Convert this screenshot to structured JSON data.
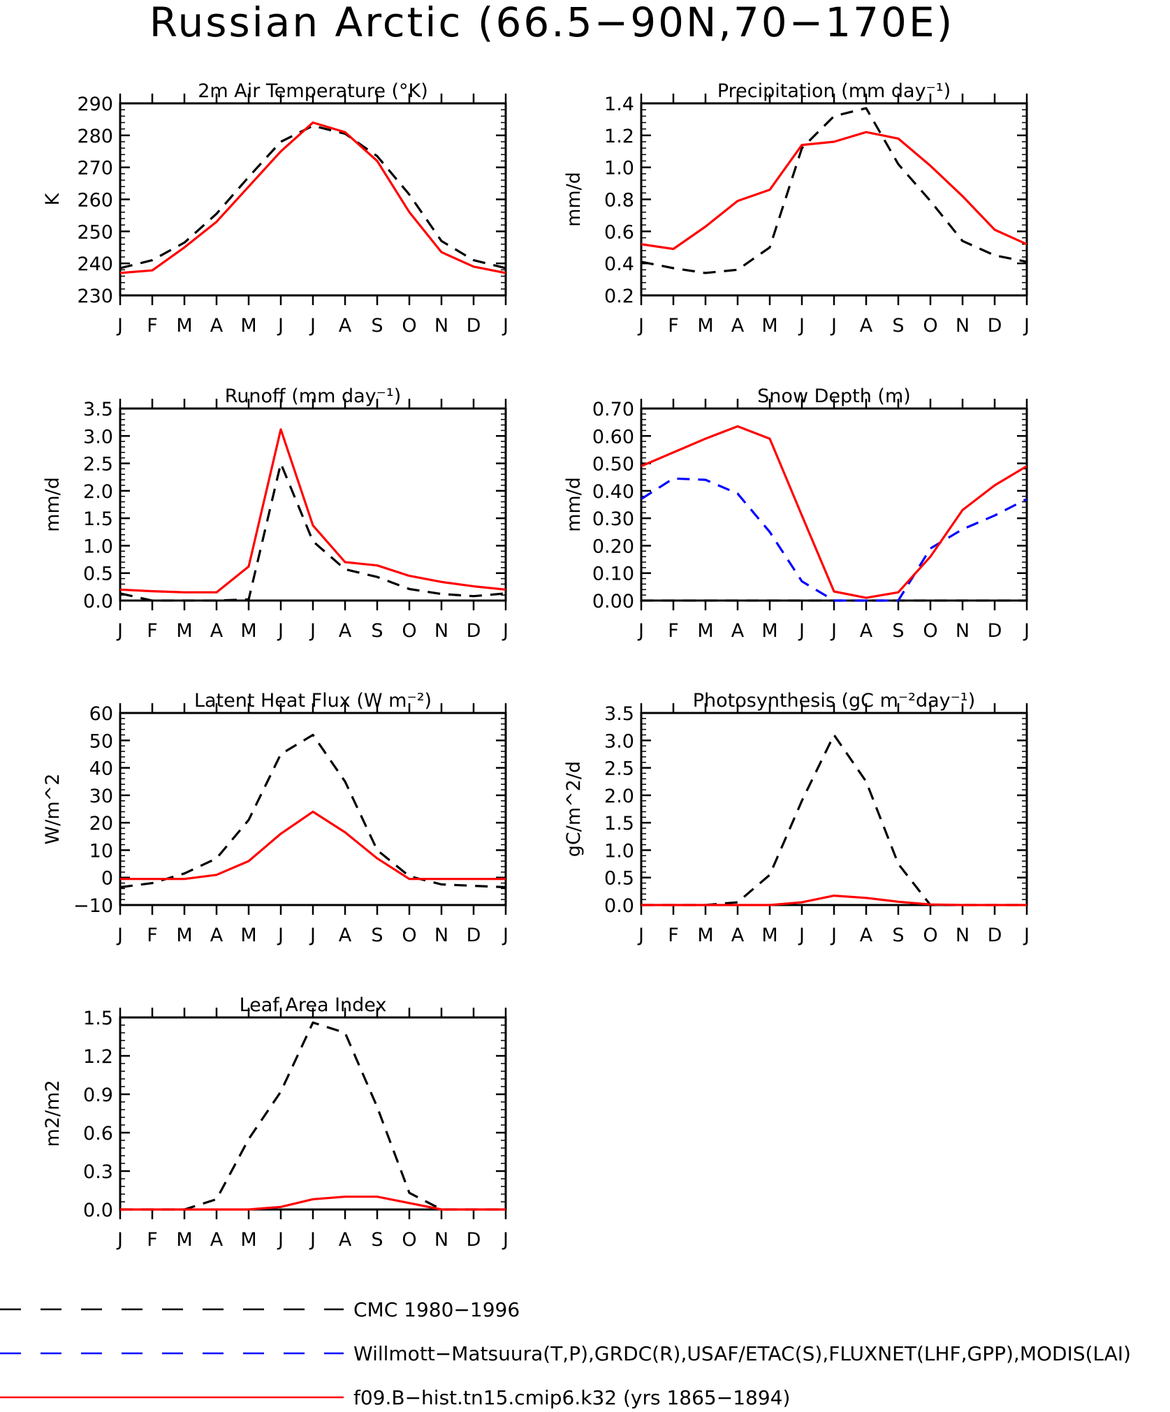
{
  "main_title": "Russian Arctic (66.5−90N,70−170E)",
  "months": [
    "J",
    "F",
    "M",
    "A",
    "M",
    "J",
    "J",
    "A",
    "S",
    "O",
    "N",
    "D",
    "J"
  ],
  "series_styles": {
    "obs_cmc": {
      "color": "#000000",
      "dash": "dashed"
    },
    "obs_multi": {
      "color": "#0000ff",
      "dash": "dashed"
    },
    "model": {
      "color": "#ff0000",
      "dash": "solid"
    }
  },
  "chart_data": [
    {
      "id": "temp",
      "type": "line",
      "title": "2m Air Temperature (°K)",
      "ylabel": "K",
      "ylim": [
        230,
        290
      ],
      "yticks": [
        230,
        240,
        250,
        260,
        270,
        280,
        290
      ],
      "ytick_labels": [
        "230",
        "240",
        "250",
        "260",
        "270",
        "280",
        "290"
      ],
      "x": [
        "J",
        "F",
        "M",
        "A",
        "M",
        "J",
        "J",
        "A",
        "S",
        "O",
        "N",
        "D",
        "J"
      ],
      "series": [
        {
          "style": "obs_cmc",
          "values": [
            238.5,
            241,
            246.5,
            255.5,
            267,
            278,
            283,
            280.5,
            273.5,
            261.5,
            247,
            241,
            238.5
          ]
        },
        {
          "style": "model",
          "values": [
            237,
            237.8,
            245,
            253,
            264,
            275,
            284,
            281,
            272,
            256,
            243.5,
            239,
            237
          ]
        }
      ]
    },
    {
      "id": "precip",
      "type": "line",
      "title": "Precipitation (mm day⁻¹)",
      "ylabel": "mm/d",
      "ylim": [
        0.2,
        1.4
      ],
      "yticks": [
        0.2,
        0.4,
        0.6,
        0.8,
        1.0,
        1.2,
        1.4
      ],
      "ytick_labels": [
        "0.2",
        "0.4",
        "0.6",
        "0.8",
        "1.0",
        "1.2",
        "1.4"
      ],
      "x": [
        "J",
        "F",
        "M",
        "A",
        "M",
        "J",
        "J",
        "A",
        "S",
        "O",
        "N",
        "D",
        "J"
      ],
      "series": [
        {
          "style": "obs_cmc",
          "values": [
            0.41,
            0.37,
            0.34,
            0.36,
            0.5,
            1.12,
            1.32,
            1.37,
            1.02,
            0.79,
            0.54,
            0.45,
            0.41
          ]
        },
        {
          "style": "model",
          "values": [
            0.52,
            0.49,
            0.63,
            0.79,
            0.86,
            1.14,
            1.16,
            1.22,
            1.18,
            1.01,
            0.82,
            0.61,
            0.52
          ]
        }
      ]
    },
    {
      "id": "runoff",
      "type": "line",
      "title": "Runoff (mm day⁻¹)",
      "ylabel": "mm/d",
      "ylim": [
        0,
        3.5
      ],
      "yticks": [
        0,
        0.5,
        1.0,
        1.5,
        2.0,
        2.5,
        3.0,
        3.5
      ],
      "ytick_labels": [
        "0.0",
        "0.5",
        "1.0",
        "1.5",
        "2.0",
        "2.5",
        "3.0",
        "3.5"
      ],
      "x": [
        "J",
        "F",
        "M",
        "A",
        "M",
        "J",
        "J",
        "A",
        "S",
        "O",
        "N",
        "D",
        "J"
      ],
      "series": [
        {
          "style": "obs_cmc",
          "values": [
            0.13,
            0.0,
            0.0,
            0.0,
            0.02,
            2.5,
            1.08,
            0.57,
            0.43,
            0.21,
            0.12,
            0.08,
            0.13
          ]
        },
        {
          "style": "model",
          "values": [
            0.2,
            0.17,
            0.15,
            0.15,
            0.62,
            3.12,
            1.37,
            0.7,
            0.64,
            0.45,
            0.34,
            0.26,
            0.2
          ]
        }
      ]
    },
    {
      "id": "snow",
      "type": "line",
      "title": "Snow Depth (m)",
      "ylabel": "mm/d",
      "ylim": [
        0,
        0.7
      ],
      "yticks": [
        0,
        0.1,
        0.2,
        0.3,
        0.4,
        0.5,
        0.6,
        0.7
      ],
      "ytick_labels": [
        "0.00",
        "0.10",
        "0.20",
        "0.30",
        "0.40",
        "0.50",
        "0.60",
        "0.70"
      ],
      "x": [
        "J",
        "F",
        "M",
        "A",
        "M",
        "J",
        "J",
        "A",
        "S",
        "O",
        "N",
        "D",
        "J"
      ],
      "series": [
        {
          "style": "obs_cmc",
          "values": [
            0,
            0,
            0,
            0,
            0,
            0,
            0,
            0,
            0,
            0,
            0,
            0,
            0
          ]
        },
        {
          "style": "obs_multi",
          "values": [
            0.37,
            0.445,
            0.44,
            0.39,
            0.25,
            0.07,
            0.0,
            0.0,
            0.0,
            0.19,
            0.26,
            0.31,
            0.37
          ]
        },
        {
          "style": "model",
          "values": [
            0.49,
            0.54,
            0.59,
            0.635,
            0.59,
            0.31,
            0.033,
            0.01,
            0.03,
            0.16,
            0.33,
            0.42,
            0.49
          ]
        }
      ]
    },
    {
      "id": "lhf",
      "type": "line",
      "title": "Latent Heat Flux (W m⁻²)",
      "ylabel": "W/m^2",
      "ylim": [
        -10,
        60
      ],
      "yticks": [
        -10,
        0,
        10,
        20,
        30,
        40,
        50,
        60
      ],
      "ytick_labels": [
        "−10",
        "0",
        "10",
        "20",
        "30",
        "40",
        "50",
        "60"
      ],
      "x": [
        "J",
        "F",
        "M",
        "A",
        "M",
        "J",
        "J",
        "A",
        "S",
        "O",
        "N",
        "D",
        "J"
      ],
      "series": [
        {
          "style": "obs_cmc",
          "values": [
            -3.5,
            -2,
            1.5,
            7,
            21,
            45,
            52,
            35,
            10,
            0.5,
            -2.5,
            -3,
            -3.5
          ]
        },
        {
          "style": "model",
          "values": [
            -0.5,
            -0.5,
            -0.5,
            1,
            6,
            16,
            24,
            16.5,
            7,
            -0.5,
            -0.5,
            -0.5,
            -0.5
          ]
        }
      ]
    },
    {
      "id": "gpp",
      "type": "line",
      "title": "Photosynthesis (gC m⁻²day⁻¹)",
      "ylabel": "gC/m^2/d",
      "ylim": [
        0,
        3.5
      ],
      "yticks": [
        0,
        0.5,
        1.0,
        1.5,
        2.0,
        2.5,
        3.0,
        3.5
      ],
      "ytick_labels": [
        "0.0",
        "0.5",
        "1.0",
        "1.5",
        "2.0",
        "2.5",
        "3.0",
        "3.5"
      ],
      "x": [
        "J",
        "F",
        "M",
        "A",
        "M",
        "J",
        "J",
        "A",
        "S",
        "O",
        "N",
        "D",
        "J"
      ],
      "series": [
        {
          "style": "obs_cmc",
          "values": [
            0,
            0,
            0,
            0.05,
            0.55,
            1.9,
            3.1,
            2.25,
            0.75,
            0,
            0,
            0,
            0
          ]
        },
        {
          "style": "model",
          "values": [
            0,
            0,
            0,
            0,
            0,
            0.05,
            0.17,
            0.13,
            0.06,
            0.01,
            0,
            0,
            0
          ]
        }
      ]
    },
    {
      "id": "lai",
      "type": "line",
      "title": "Leaf Area Index",
      "ylabel": "m2/m2",
      "ylim": [
        0,
        1.5
      ],
      "yticks": [
        0,
        0.3,
        0.6,
        0.9,
        1.2,
        1.5
      ],
      "ytick_labels": [
        "0.0",
        "0.3",
        "0.6",
        "0.9",
        "1.2",
        "1.5"
      ],
      "x": [
        "J",
        "F",
        "M",
        "A",
        "M",
        "J",
        "J",
        "A",
        "S",
        "O",
        "N",
        "D",
        "J"
      ],
      "series": [
        {
          "style": "obs_cmc",
          "values": [
            0,
            0,
            0,
            0.08,
            0.55,
            0.92,
            1.46,
            1.38,
            0.8,
            0.13,
            0,
            0,
            0
          ]
        },
        {
          "style": "model",
          "values": [
            0,
            0,
            0,
            0,
            0,
            0.02,
            0.08,
            0.1,
            0.1,
            0.05,
            0,
            0,
            0
          ]
        }
      ]
    }
  ],
  "legend": [
    {
      "style": "obs_cmc",
      "label": "CMC 1980−1996"
    },
    {
      "style": "obs_multi",
      "label": "Willmott−Matsuura(T,P),GRDC(R),USAF/ETAC(S),FLUXNET(LHF,GPP),MODIS(LAI)"
    },
    {
      "style": "model",
      "label": "f09.B−hist.tn15.cmip6.k32 (yrs 1865−1894)"
    }
  ]
}
